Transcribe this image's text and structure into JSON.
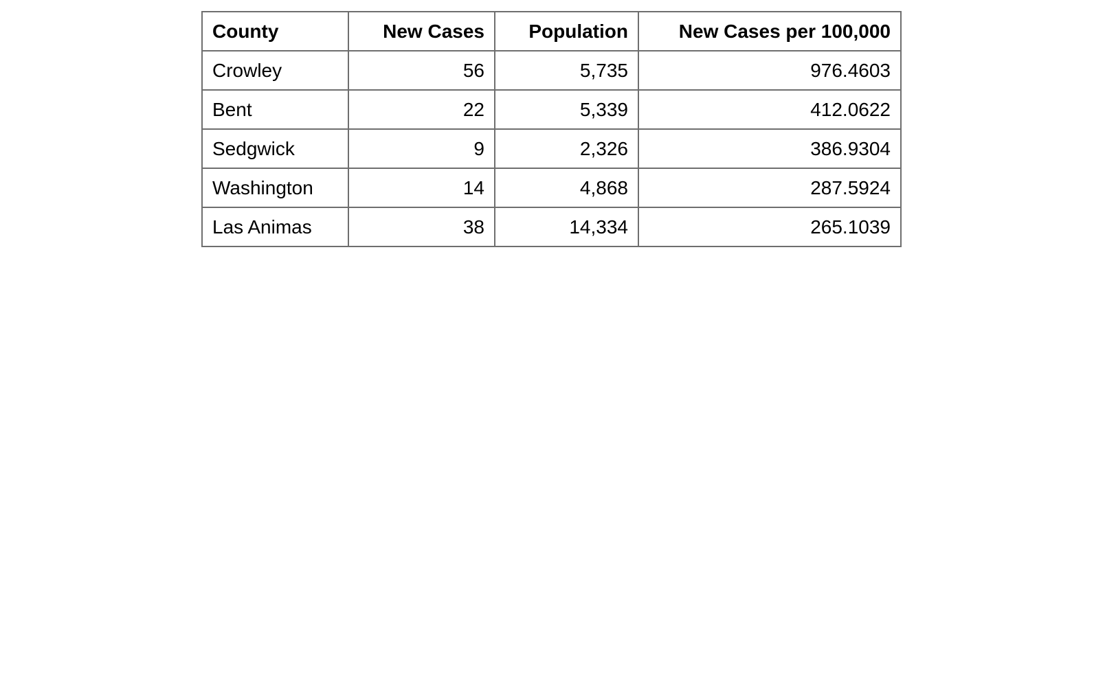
{
  "table": {
    "headers": {
      "county": "County",
      "new_cases": "New Cases",
      "population": "Population",
      "rate": "New Cases per 100,000"
    },
    "rows": [
      {
        "county": "Crowley",
        "new_cases": "56",
        "population": "5,735",
        "rate": "976.4603"
      },
      {
        "county": "Bent",
        "new_cases": "22",
        "population": "5,339",
        "rate": "412.0622"
      },
      {
        "county": "Sedgwick",
        "new_cases": "9",
        "population": "2,326",
        "rate": "386.9304"
      },
      {
        "county": "Washington",
        "new_cases": "14",
        "population": "4,868",
        "rate": "287.5924"
      },
      {
        "county": "Las Animas",
        "new_cases": "38",
        "population": "14,334",
        "rate": "265.1039"
      }
    ]
  }
}
